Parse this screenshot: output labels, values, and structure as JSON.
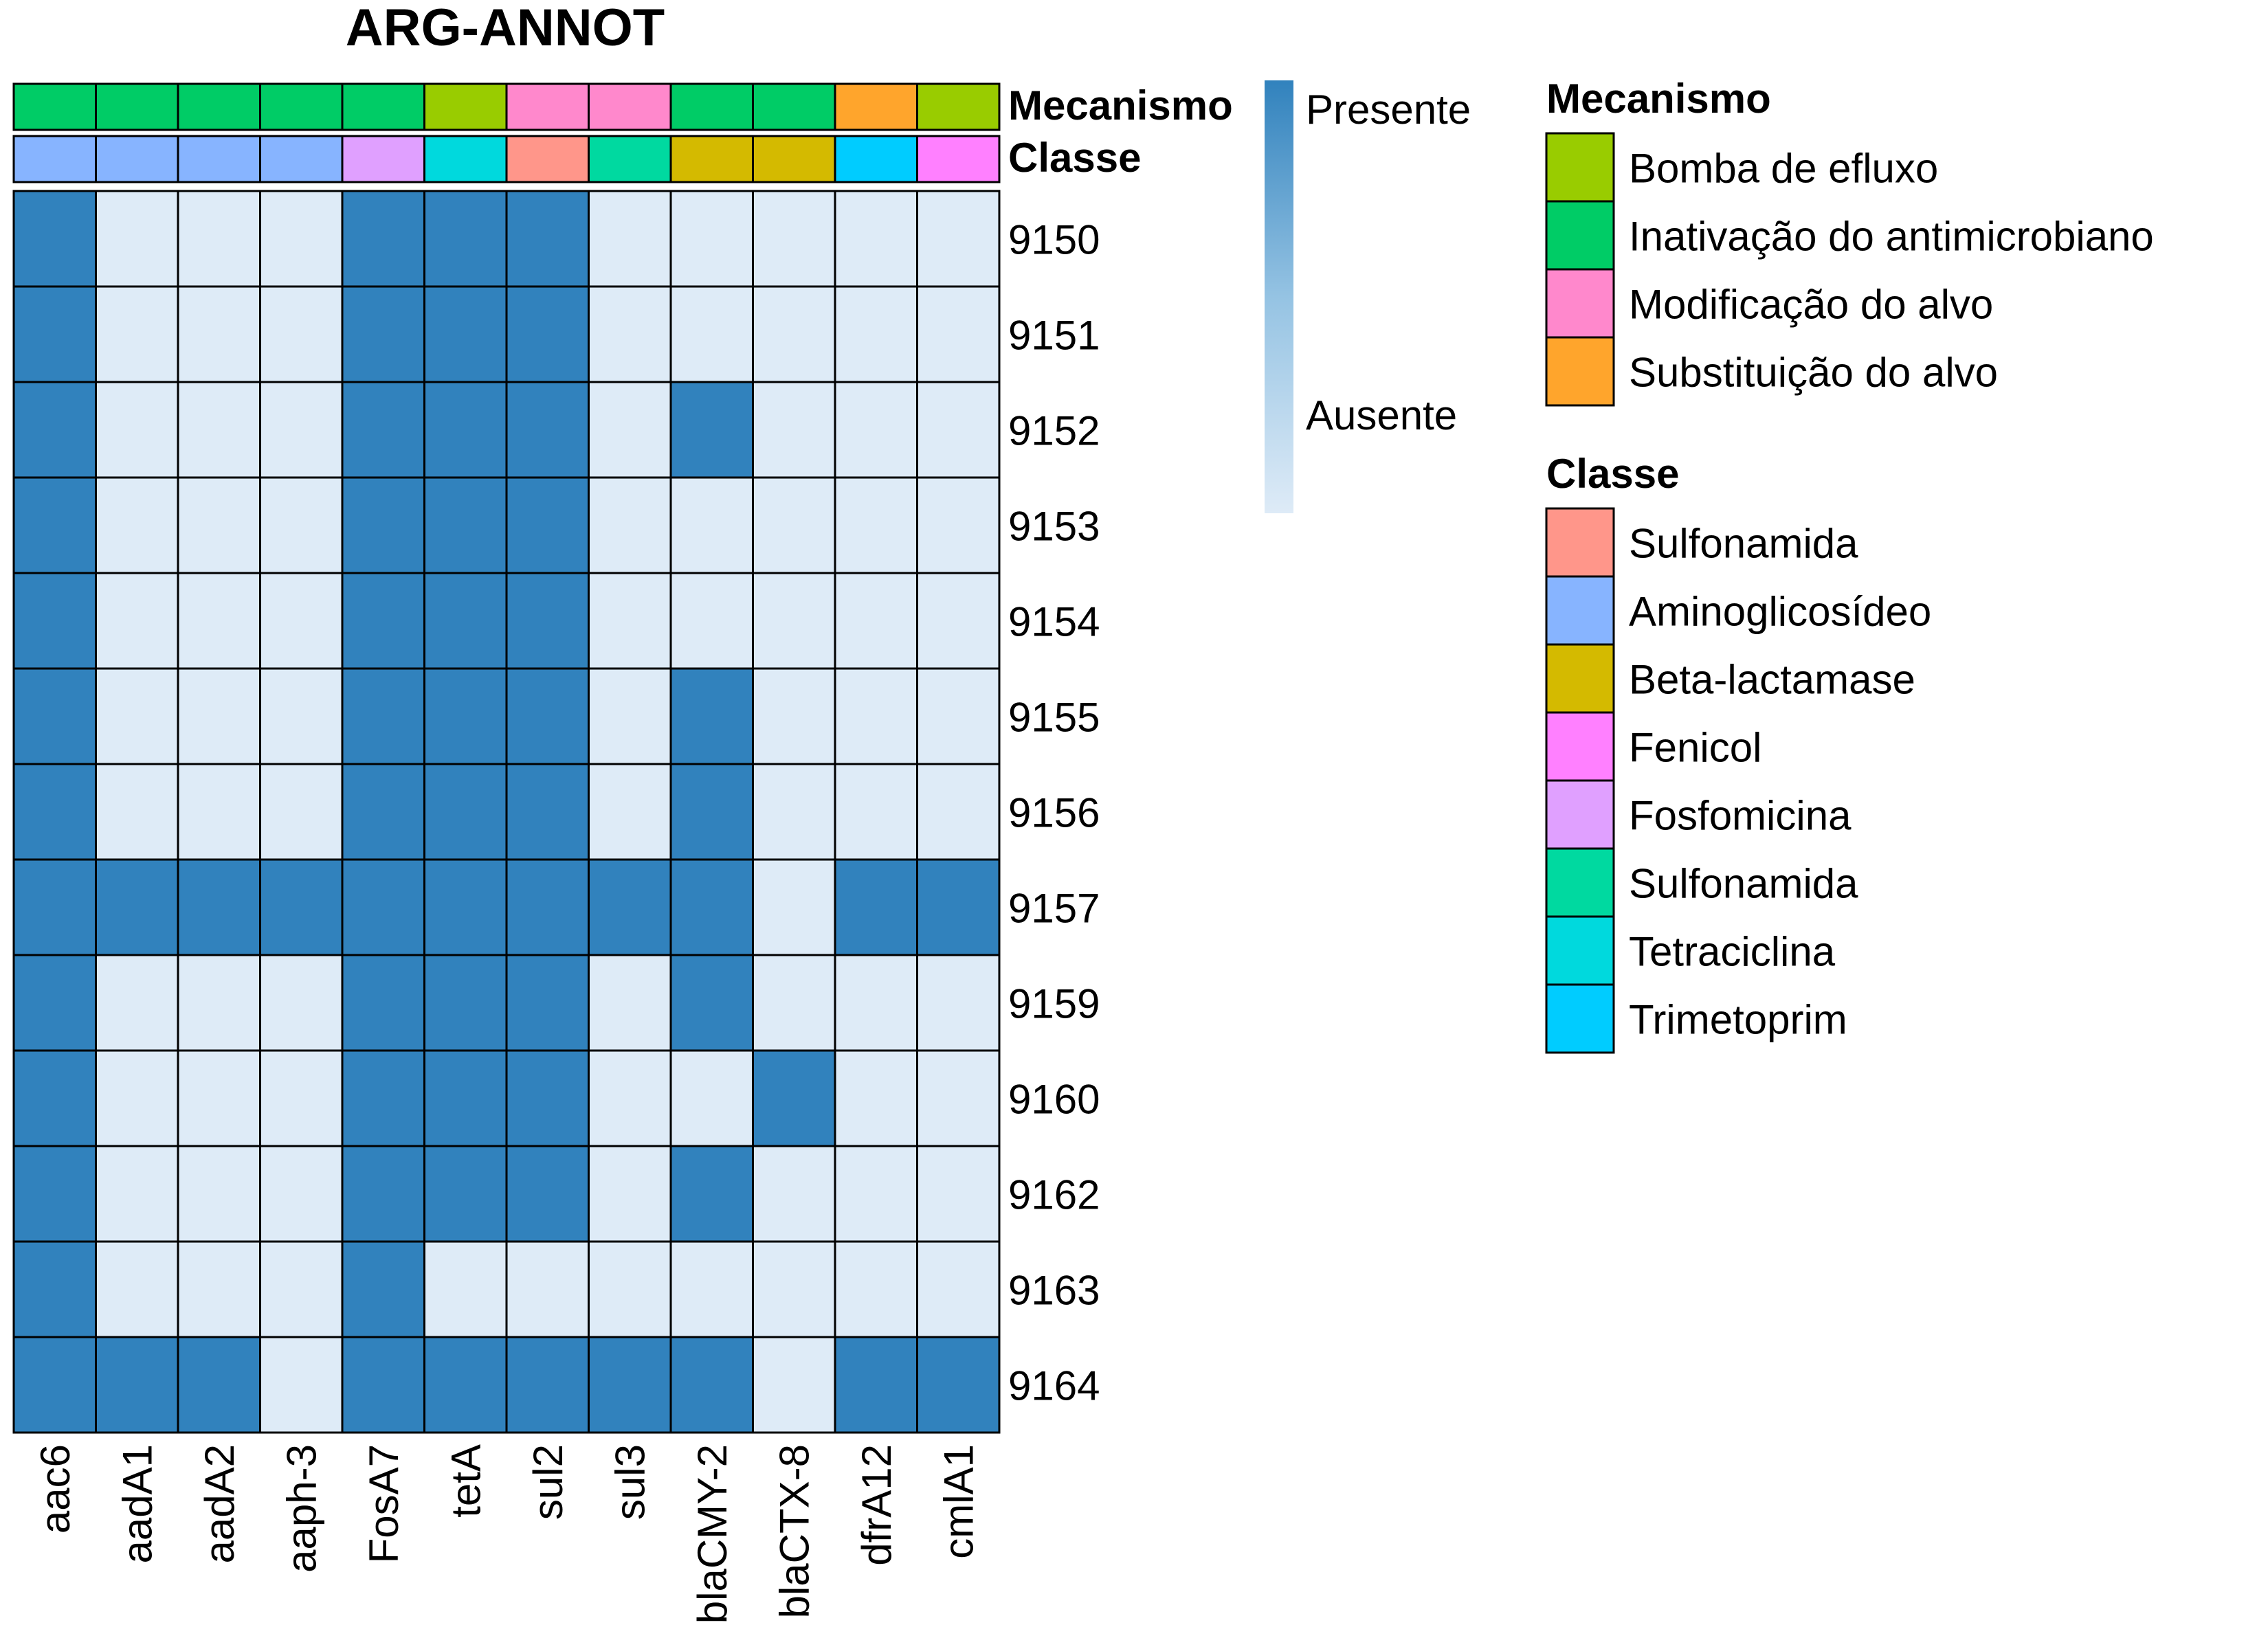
{
  "chart_data": {
    "type": "heatmap",
    "title": "ARG-ANNOT",
    "columns": [
      "aac6",
      "aadA1",
      "aadA2",
      "aaph-3",
      "FosA7",
      "tetA",
      "sul2",
      "sul3",
      "blaCMY-2",
      "blaCTX-8",
      "dfrA12",
      "cmlA1"
    ],
    "rows": [
      "9150",
      "9151",
      "9152",
      "9153",
      "9154",
      "9155",
      "9156",
      "9157",
      "9159",
      "9160",
      "9162",
      "9163",
      "9164"
    ],
    "values": [
      [
        1,
        0,
        0,
        0,
        1,
        1,
        1,
        0,
        0,
        0,
        0,
        0
      ],
      [
        1,
        0,
        0,
        0,
        1,
        1,
        1,
        0,
        0,
        0,
        0,
        0
      ],
      [
        1,
        0,
        0,
        0,
        1,
        1,
        1,
        0,
        1,
        0,
        0,
        0
      ],
      [
        1,
        0,
        0,
        0,
        1,
        1,
        1,
        0,
        0,
        0,
        0,
        0
      ],
      [
        1,
        0,
        0,
        0,
        1,
        1,
        1,
        0,
        0,
        0,
        0,
        0
      ],
      [
        1,
        0,
        0,
        0,
        1,
        1,
        1,
        0,
        1,
        0,
        0,
        0
      ],
      [
        1,
        0,
        0,
        0,
        1,
        1,
        1,
        0,
        1,
        0,
        0,
        0
      ],
      [
        1,
        1,
        1,
        1,
        1,
        1,
        1,
        1,
        1,
        0,
        1,
        1
      ],
      [
        1,
        0,
        0,
        0,
        1,
        1,
        1,
        0,
        1,
        0,
        0,
        0
      ],
      [
        1,
        0,
        0,
        0,
        1,
        1,
        1,
        0,
        0,
        1,
        0,
        0
      ],
      [
        1,
        0,
        0,
        0,
        1,
        1,
        1,
        0,
        1,
        0,
        0,
        0
      ],
      [
        1,
        0,
        0,
        0,
        1,
        0,
        0,
        0,
        0,
        0,
        0,
        0
      ],
      [
        1,
        1,
        1,
        0,
        1,
        1,
        1,
        1,
        1,
        0,
        1,
        1
      ]
    ],
    "colors": {
      "present": "#3182BD",
      "absent": "#DEEBF7",
      "border": "#000000"
    },
    "color_scale": {
      "high_label": "Presente",
      "low_label": "Ausente"
    },
    "annotations": {
      "mechanism": {
        "label": "Mecanismo",
        "values": [
          "Inativação do antimicrobiano",
          "Inativação do antimicrobiano",
          "Inativação do antimicrobiano",
          "Inativação do antimicrobiano",
          "Inativação do antimicrobiano",
          "Bomba de efluxo",
          "Modificação do alvo",
          "Modificação do alvo",
          "Inativação do antimicrobiano",
          "Inativação do antimicrobiano",
          "Substituição do alvo",
          "Bomba de efluxo"
        ]
      },
      "class": {
        "label": "Classe",
        "values": [
          "Aminoglicosídeo",
          "Aminoglicosídeo",
          "Aminoglicosídeo",
          "Aminoglicosídeo",
          "Fosfomicina",
          "Tetraciclina",
          "Sulfonamida",
          "Sulfonamida (2)",
          "Beta-lactamase",
          "Beta-lactamase",
          "Trimetoprim",
          "Fenicol"
        ]
      }
    },
    "legends": {
      "mechanism": {
        "title": "Mecanismo",
        "items": [
          {
            "label": "Bomba de efluxo",
            "color": "#99CC00"
          },
          {
            "label": "Inativação do antimicrobiano",
            "color": "#00CC66"
          },
          {
            "label": "Modificação do alvo",
            "color": "#FF88CC"
          },
          {
            "label": "Substituição do alvo",
            "color": "#FFA52C"
          }
        ]
      },
      "class": {
        "title": "Classe",
        "items": [
          {
            "key": "Sulfonamida",
            "label": "Sulfonamida",
            "color": "#FF968A"
          },
          {
            "key": "Aminoglicosídeo",
            "label": "Aminoglicosídeo",
            "color": "#87B4FF"
          },
          {
            "key": "Beta-lactamase",
            "label": "Beta-lactamase",
            "color": "#D4BA00"
          },
          {
            "key": "Fenicol",
            "label": "Fenicol",
            "color": "#FF80FF"
          },
          {
            "key": "Fosfomicina",
            "label": "Fosfomicina",
            "color": "#E0A0FF"
          },
          {
            "key": "Sulfonamida (2)",
            "label": "Sulfonamida",
            "color": "#00D9A0"
          },
          {
            "key": "Tetraciclina",
            "label": "Tetraciclina",
            "color": "#00D9DD"
          },
          {
            "key": "Trimetoprim",
            "label": "Trimetoprim",
            "color": "#00CCFF"
          }
        ]
      }
    }
  }
}
